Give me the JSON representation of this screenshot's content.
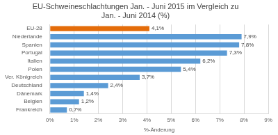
{
  "chart_data": {
    "type": "bar",
    "orientation": "horizontal",
    "title": [
      "EU-Schweineschlachtungen Jan. - Juni 2015 im Vergleich zu",
      "Jan. - Juni 2014 (%)"
    ],
    "x_label": "%-Änderung",
    "categories": [
      "EU-28",
      "Niederlande",
      "Spanien",
      "Portugal",
      "Italien",
      "Polen",
      "Ver. Königreich",
      "Deutschland",
      "Dänemark",
      "Belgien",
      "Frankreich"
    ],
    "values": [
      4.1,
      7.9,
      7.8,
      7.3,
      6.2,
      5.4,
      3.7,
      2.4,
      1.4,
      1.2,
      0.7
    ],
    "value_labels": [
      "4,1%",
      "7,9%",
      "7,8%",
      "7,3%",
      "6,2%",
      "5,4%",
      "3,7%",
      "2,4%",
      "1,4%",
      "1,2%",
      "0,7%"
    ],
    "colors": [
      "#e46c0a",
      "#5b9bd5",
      "#5b9bd5",
      "#5b9bd5",
      "#5b9bd5",
      "#5b9bd5",
      "#5b9bd5",
      "#5b9bd5",
      "#5b9bd5",
      "#5b9bd5",
      "#5b9bd5"
    ],
    "xlim": [
      0,
      9
    ],
    "xticks": [
      {
        "value": 0,
        "label": "0%"
      },
      {
        "value": 1,
        "label": "1%"
      },
      {
        "value": 2,
        "label": "2%"
      },
      {
        "value": 3,
        "label": "3%"
      },
      {
        "value": 4,
        "label": "4%"
      },
      {
        "value": 5,
        "label": "5%"
      },
      {
        "value": 6,
        "label": "6%"
      },
      {
        "value": 7,
        "label": "7%"
      },
      {
        "value": 8,
        "label": "8%"
      },
      {
        "value": 9,
        "label": "9%"
      }
    ],
    "grid": true,
    "data_labels": true
  }
}
